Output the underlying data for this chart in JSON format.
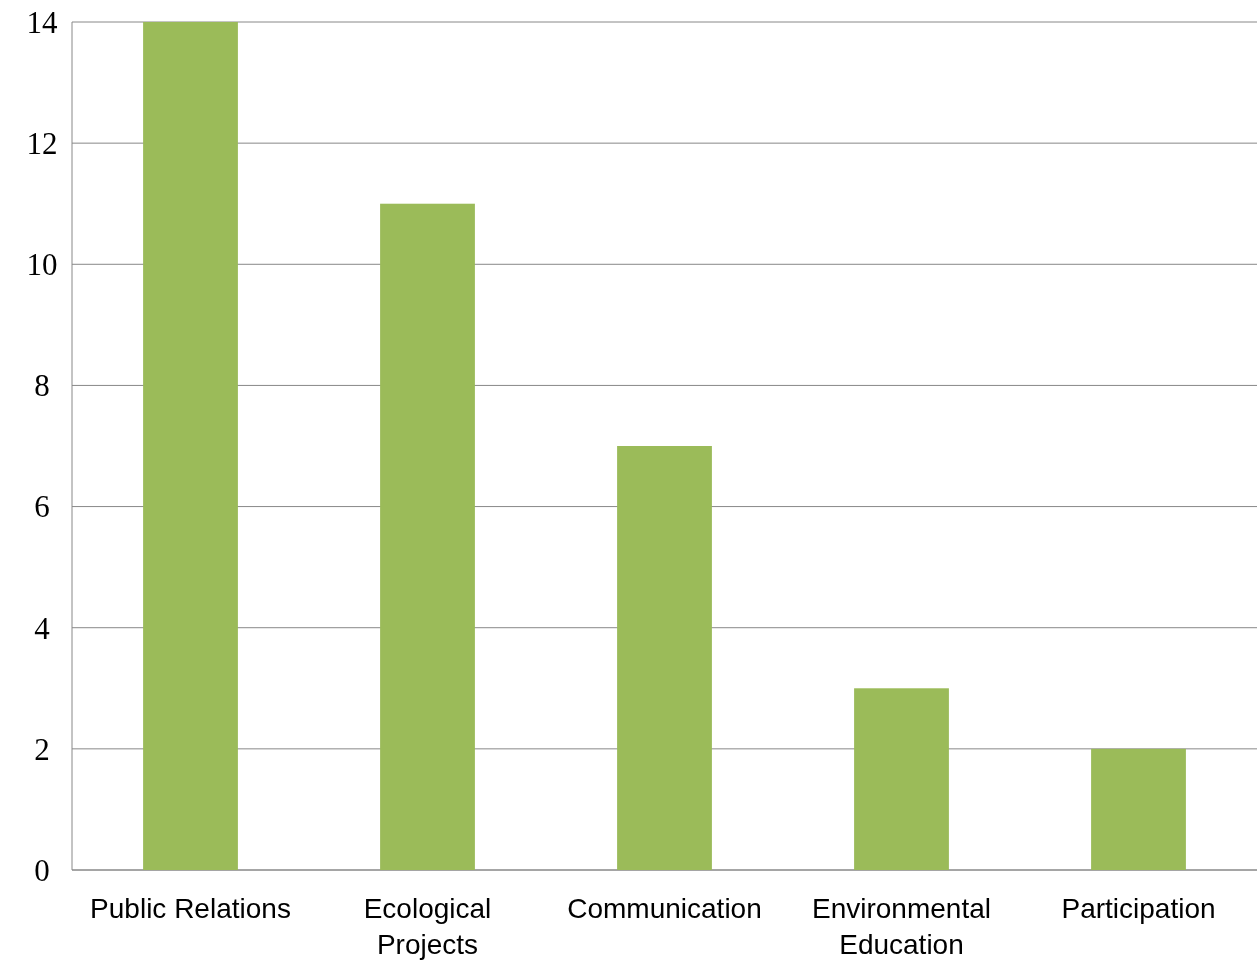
{
  "chart_data": {
    "type": "bar",
    "categories": [
      "Public Relations",
      "Ecological Projects",
      "Communication",
      "Environmental Education",
      "Participation"
    ],
    "values": [
      14,
      11,
      7,
      3,
      2
    ],
    "color": "#9bbb59",
    "ylim": [
      0,
      14
    ],
    "yticks": [
      0,
      2,
      4,
      6,
      8,
      10,
      12,
      14
    ],
    "grid": "y"
  }
}
